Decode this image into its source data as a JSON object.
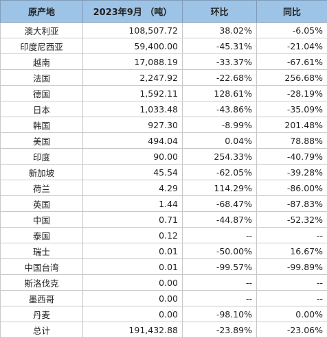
{
  "table": {
    "headers": [
      "原产地",
      "2023年9月 （吨）",
      "环比",
      "同比"
    ],
    "rows": [
      [
        "澳大利亚",
        "108,507.72",
        "38.02%",
        "-6.05%"
      ],
      [
        "印度尼西亚",
        "59,400.00",
        "-45.31%",
        "-21.04%"
      ],
      [
        "越南",
        "17,088.19",
        "-33.37%",
        "-67.61%"
      ],
      [
        "法国",
        "2,247.92",
        "-22.68%",
        "256.68%"
      ],
      [
        "德国",
        "1,592.11",
        "128.61%",
        "-28.19%"
      ],
      [
        "日本",
        "1,033.48",
        "-43.86%",
        "-35.09%"
      ],
      [
        "韩国",
        "927.30",
        "-8.99%",
        "201.48%"
      ],
      [
        "美国",
        "494.04",
        "0.04%",
        "78.88%"
      ],
      [
        "印度",
        "90.00",
        "254.33%",
        "-40.79%"
      ],
      [
        "新加坡",
        "45.54",
        "-62.05%",
        "-39.28%"
      ],
      [
        "荷兰",
        "4.29",
        "114.29%",
        "-86.00%"
      ],
      [
        "英国",
        "1.44",
        "-68.47%",
        "-87.83%"
      ],
      [
        "中国",
        "0.71",
        "-44.87%",
        "-52.32%"
      ],
      [
        "泰国",
        "0.12",
        "--",
        "--"
      ],
      [
        "瑞士",
        "0.01",
        "-50.00%",
        "16.67%"
      ],
      [
        "中国台湾",
        "0.01",
        "-99.57%",
        "-99.89%"
      ],
      [
        "斯洛伐克",
        "0.00",
        "--",
        "--"
      ],
      [
        "墨西哥",
        "0.00",
        "--",
        "--"
      ],
      [
        "丹麦",
        "0.00",
        "-98.10%",
        "0.00%"
      ],
      [
        "总计",
        "191,432.88",
        "-23.89%",
        "-23.06%"
      ]
    ]
  }
}
